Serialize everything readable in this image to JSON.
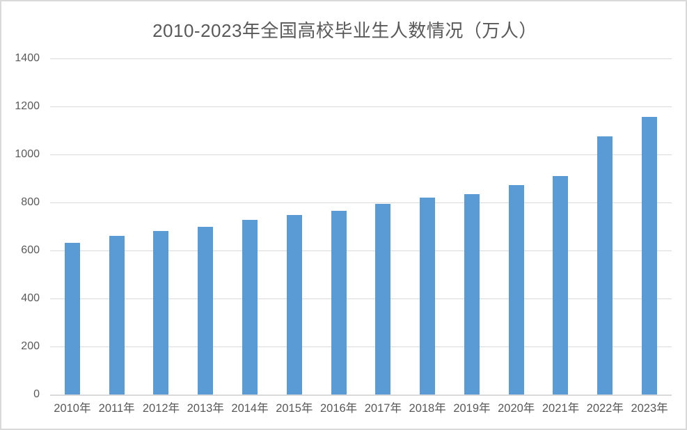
{
  "chart_data": {
    "type": "bar",
    "title": "2010-2023年全国高校毕业生人数情况（万人）",
    "categories": [
      "2010年",
      "2011年",
      "2012年",
      "2013年",
      "2014年",
      "2015年",
      "2016年",
      "2017年",
      "2018年",
      "2019年",
      "2020年",
      "2021年",
      "2022年",
      "2023年"
    ],
    "values": [
      631,
      660,
      680,
      699,
      727,
      749,
      765,
      795,
      820,
      834,
      874,
      909,
      1076,
      1158
    ],
    "xlabel": "",
    "ylabel": "",
    "ylim": [
      0,
      1400
    ],
    "yticks": [
      1400,
      1200,
      1000,
      800,
      600,
      400,
      200,
      0
    ],
    "grid": true,
    "legend": false,
    "colors": {
      "bar": "#5B9BD5",
      "text": "#595959",
      "gridline": "#D9D9D9",
      "border": "#D9D9D9",
      "background": "#FFFFFF"
    }
  }
}
